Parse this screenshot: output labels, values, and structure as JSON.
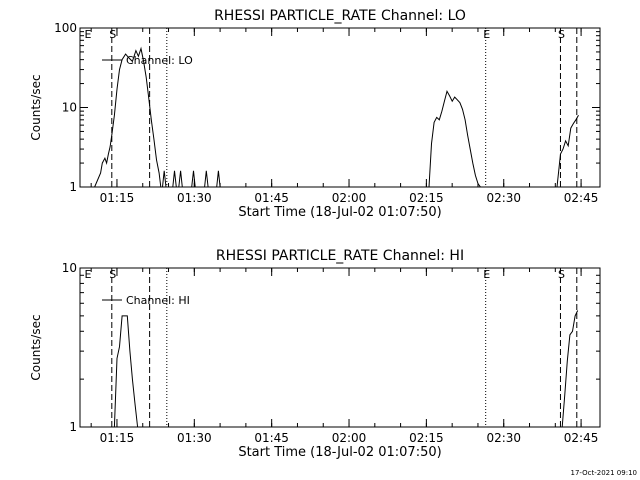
{
  "footer": {
    "timestamp": "17-Oct-2021 09:10"
  },
  "chart_data": [
    {
      "type": "line",
      "title": "RHESSI PARTICLE_RATE Channel: LO",
      "xlabel": "Start Time (18-Jul-02 01:07:50)",
      "ylabel": "Counts/sec",
      "yscale": "log",
      "xlim": [
        "01:07:50",
        "02:48:40"
      ],
      "ylim": [
        1,
        100
      ],
      "x_ticks": [
        "01:15",
        "01:30",
        "01:45",
        "02:00",
        "02:15",
        "02:30",
        "02:45"
      ],
      "y_ticks": [
        "1",
        "10",
        "100"
      ],
      "legend": {
        "position": "top-left",
        "label": "Channel: LO"
      },
      "markers": [
        {
          "label": "E",
          "time": "01:08:30",
          "style": "none"
        },
        {
          "label": "S",
          "time": "01:14:00",
          "style": "dashed"
        },
        {
          "label": "",
          "time": "01:21:20",
          "style": "dashed"
        },
        {
          "label": "",
          "time": "01:24:40",
          "style": "dotted"
        },
        {
          "label": "E",
          "time": "02:26:30",
          "style": "dotted"
        },
        {
          "label": "S",
          "time": "02:41:00",
          "style": "dashed"
        },
        {
          "label": "",
          "time": "02:44:10",
          "style": "dashed"
        }
      ],
      "series": [
        {
          "name": "Channel: LO",
          "segments": [
            {
              "x": [
                "01:10:40",
                "01:11:50",
                "01:12:10",
                "01:12:40",
                "01:13:00",
                "01:13:20",
                "01:13:40",
                "01:14:00",
                "01:14:30",
                "01:15:00",
                "01:15:30",
                "01:16:00",
                "01:16:40",
                "01:17:20",
                "01:18:00",
                "01:18:40",
                "01:19:10",
                "01:19:40",
                "01:20:10",
                "01:20:40",
                "01:21:10",
                "01:21:40",
                "01:22:10",
                "01:22:40",
                "01:23:10",
                "01:23:30"
              ],
              "y": [
                1.0,
                1.5,
                2.0,
                2.3,
                2.0,
                2.6,
                3.2,
                4.5,
                8.0,
                17,
                30,
                40,
                47,
                42,
                38,
                52,
                44,
                55,
                38,
                24,
                13,
                7,
                4,
                2.2,
                1.5,
                1.0
              ]
            },
            {
              "x": [
                "01:23:50",
                "01:24:10",
                "01:24:30"
              ],
              "y": [
                1.0,
                1.6,
                1.0
              ]
            },
            {
              "x": [
                "01:25:50",
                "01:26:10",
                "01:26:30"
              ],
              "y": [
                1.0,
                1.6,
                1.0
              ]
            },
            {
              "x": [
                "01:27:00",
                "01:27:20",
                "01:27:40"
              ],
              "y": [
                1.0,
                1.6,
                1.0
              ]
            },
            {
              "x": [
                "01:29:30",
                "01:29:50",
                "01:30:10"
              ],
              "y": [
                1.0,
                1.6,
                1.0
              ]
            },
            {
              "x": [
                "01:32:00",
                "01:32:20",
                "01:32:40"
              ],
              "y": [
                1.0,
                1.6,
                1.0
              ]
            },
            {
              "x": [
                "01:34:20",
                "01:34:40",
                "01:35:00"
              ],
              "y": [
                1.0,
                1.6,
                1.0
              ]
            },
            {
              "x": [
                "02:15:30",
                "02:16:00",
                "02:16:30",
                "02:17:00",
                "02:17:30",
                "02:18:00",
                "02:18:30",
                "02:19:00",
                "02:19:30",
                "02:20:00",
                "02:20:30",
                "02:21:00",
                "02:21:30",
                "02:22:00",
                "02:22:30",
                "02:23:00",
                "02:23:30",
                "02:24:00",
                "02:24:30",
                "02:25:00",
                "02:25:30"
              ],
              "y": [
                1.0,
                3.5,
                6.5,
                7.5,
                7.0,
                9.0,
                12,
                16,
                14,
                12,
                13.5,
                12.5,
                11.5,
                9.5,
                7.0,
                4.5,
                3.0,
                2.0,
                1.4,
                1.1,
                1.0
              ]
            },
            {
              "x": [
                "02:40:20",
                "02:41:00",
                "02:41:30",
                "02:42:00",
                "02:42:30",
                "02:43:00",
                "02:43:30",
                "02:44:00",
                "02:44:30"
              ],
              "y": [
                1.0,
                2.6,
                3.0,
                3.8,
                3.3,
                5.5,
                6.3,
                7.0,
                8.0
              ]
            }
          ]
        }
      ]
    },
    {
      "type": "line",
      "title": "RHESSI PARTICLE_RATE Channel: HI",
      "xlabel": "Start Time (18-Jul-02 01:07:50)",
      "ylabel": "Counts/sec",
      "yscale": "log",
      "xlim": [
        "01:07:50",
        "02:48:40"
      ],
      "ylim": [
        1,
        10
      ],
      "x_ticks": [
        "01:15",
        "01:30",
        "01:45",
        "02:00",
        "02:15",
        "02:30",
        "02:45"
      ],
      "y_ticks": [
        "1",
        "10"
      ],
      "legend": {
        "position": "top-left",
        "label": "Channel: HI"
      },
      "markers": [
        {
          "label": "E",
          "time": "01:08:30",
          "style": "none"
        },
        {
          "label": "S",
          "time": "01:14:00",
          "style": "dashed"
        },
        {
          "label": "",
          "time": "01:21:20",
          "style": "dashed"
        },
        {
          "label": "",
          "time": "01:24:40",
          "style": "dotted"
        },
        {
          "label": "E",
          "time": "02:26:30",
          "style": "dotted"
        },
        {
          "label": "S",
          "time": "02:41:00",
          "style": "dashed"
        },
        {
          "label": "",
          "time": "02:44:10",
          "style": "dashed"
        }
      ],
      "series": [
        {
          "name": "Channel: HI",
          "segments": [
            {
              "x": [
                "01:14:30",
                "01:15:00",
                "01:15:30",
                "01:16:00",
                "01:16:30",
                "01:17:00",
                "01:17:30",
                "01:18:00",
                "01:18:30",
                "01:19:00"
              ],
              "y": [
                1.0,
                2.7,
                3.2,
                5.0,
                5.0,
                5.0,
                3.0,
                2.0,
                1.4,
                1.0
              ]
            },
            {
              "x": [
                "02:41:20",
                "02:41:50",
                "02:42:20",
                "02:42:50",
                "02:43:20",
                "02:43:50",
                "02:44:20"
              ],
              "y": [
                1.0,
                1.6,
                2.6,
                3.8,
                4.0,
                5.0,
                5.4
              ]
            }
          ]
        }
      ]
    }
  ]
}
